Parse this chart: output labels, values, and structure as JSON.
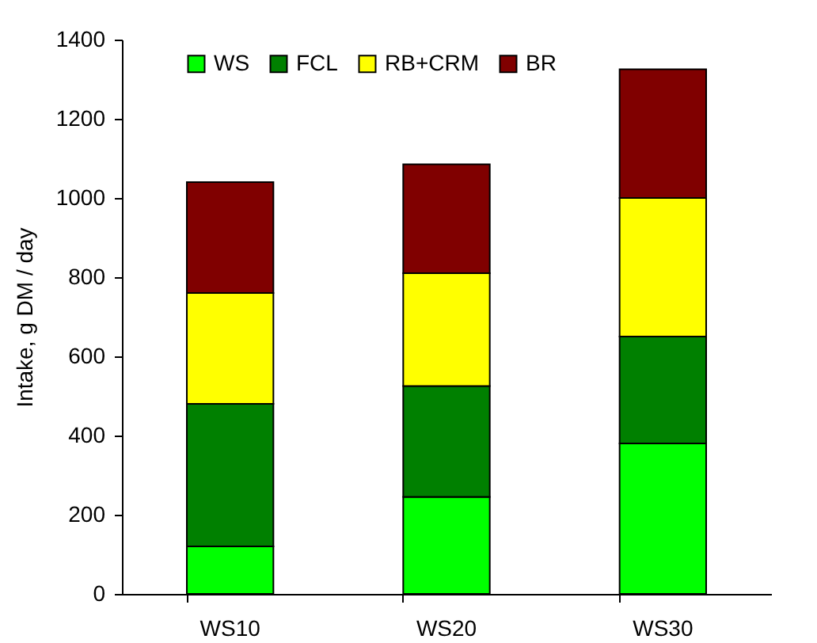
{
  "chart_data": {
    "type": "bar",
    "ylabel": "Intake, g DM / day",
    "categories": [
      "WS10",
      "WS20",
      "WS30"
    ],
    "series": [
      {
        "name": "WS",
        "color": "#00ff00",
        "values": [
          120,
          245,
          380
        ]
      },
      {
        "name": "FCL",
        "color": "#008000",
        "values": [
          360,
          280,
          270
        ]
      },
      {
        "name": "RB+CRM",
        "color": "#ffff00",
        "values": [
          280,
          285,
          350
        ]
      },
      {
        "name": "BR",
        "color": "#800000",
        "values": [
          280,
          275,
          325
        ]
      }
    ],
    "stacked": true,
    "ylim": [
      0,
      1400
    ],
    "yticks": [
      0,
      200,
      400,
      600,
      800,
      1000,
      1200,
      1400
    ],
    "grid": false,
    "legend": "top"
  }
}
